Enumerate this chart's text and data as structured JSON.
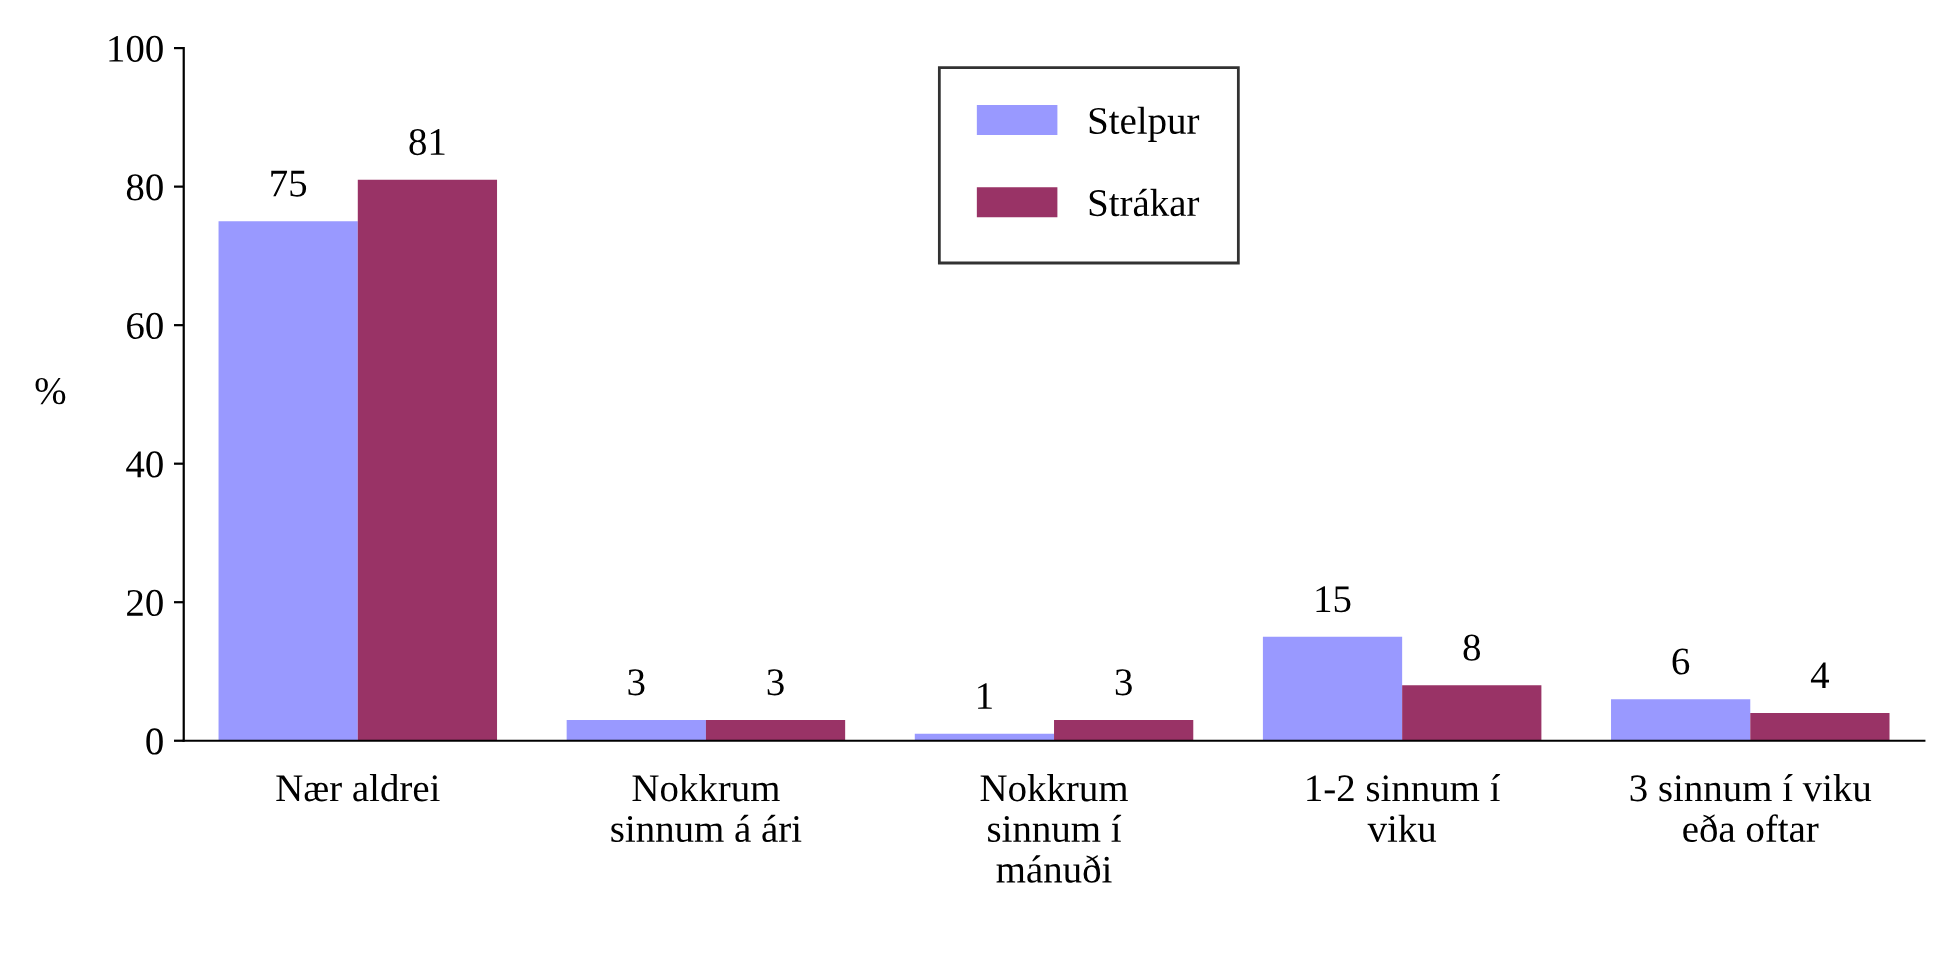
{
  "chart_data": {
    "type": "bar",
    "ylabel": "%",
    "categories": [
      "Nær aldrei",
      "Nokkrum\nsinnum á ári",
      "Nokkrum\nsinnum í\nmánuði",
      "1-2 sinnum í\nviku",
      "3 sinnum í viku\neða oftar"
    ],
    "series": [
      {
        "name": "Stelpur",
        "color": "#9999ff",
        "values": [
          75,
          3,
          1,
          15,
          6
        ]
      },
      {
        "name": "Strákar",
        "color": "#993366",
        "values": [
          81,
          3,
          3,
          8,
          4
        ]
      }
    ],
    "ylim": [
      0,
      100
    ],
    "yticks": [
      0,
      20,
      40,
      60,
      80,
      100
    ],
    "data_labels": true,
    "legend": "top center",
    "grid": false
  }
}
